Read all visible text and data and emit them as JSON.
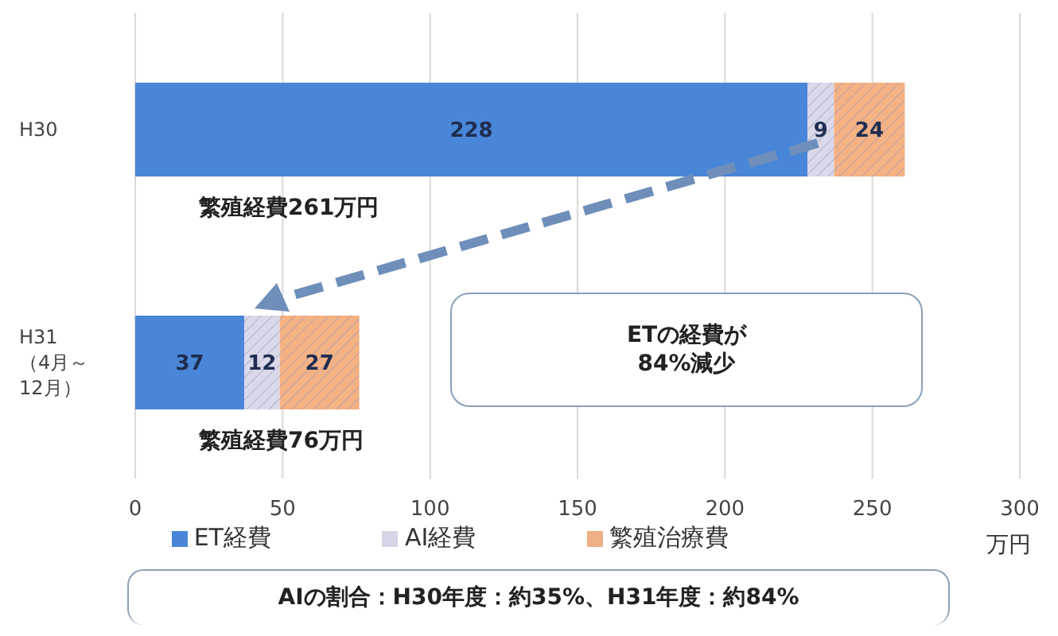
{
  "chart_data": {
    "type": "bar",
    "orientation": "horizontal",
    "stacked": true,
    "categories": [
      "H30",
      "H31\n（4月～\n12月）"
    ],
    "series": [
      {
        "name": "ET経費",
        "color": "#4a86d8",
        "values": [
          228,
          37
        ]
      },
      {
        "name": "AI経費",
        "color": "#d9d9ea",
        "values": [
          9,
          12
        ]
      },
      {
        "name": "繁殖治療費",
        "color": "#f4b183",
        "values": [
          24,
          27
        ]
      }
    ],
    "totals": [
      "繁殖経費261万円",
      "繁殖経費76万円"
    ],
    "xlabel": "万円",
    "xlim": [
      0,
      300
    ],
    "xticks": [
      0,
      50,
      100,
      150,
      200,
      250,
      300
    ],
    "grid": "x",
    "legend": "bottom",
    "data_labels": true,
    "annotations": [
      "ETの経費が\n84%減少",
      "AIの割合：H30年度：約35%、H31年度：約84%"
    ]
  }
}
